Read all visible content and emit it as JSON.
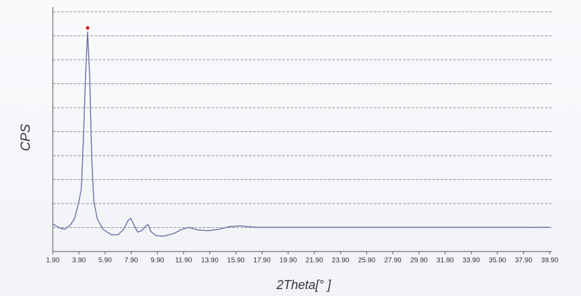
{
  "chart_data": {
    "type": "line",
    "xlabel": "2Theta[° ]",
    "ylabel": "CPS",
    "series": [
      {
        "color": "#6a6ea6",
        "x": [
          1.9,
          2.38,
          2.8,
          3.18,
          3.55,
          3.87,
          4.08,
          4.24,
          4.4,
          4.56,
          4.72,
          4.88,
          5.04,
          5.3,
          5.73,
          6.36,
          6.89,
          7.32,
          7.64,
          7.85,
          8.06,
          8.38,
          8.7,
          9.02,
          9.18,
          9.39,
          9.76,
          10.35,
          11.15,
          11.78,
          12.31,
          13.0,
          13.8,
          14.6,
          15.4,
          16.19,
          17.52,
          39.9
        ],
        "values": [
          1.16,
          0.99,
          0.93,
          1.07,
          1.36,
          2.03,
          2.61,
          4.7,
          7.3,
          9.16,
          7.3,
          3.83,
          2.09,
          1.36,
          0.93,
          0.7,
          0.7,
          0.93,
          1.28,
          1.39,
          1.16,
          0.81,
          0.87,
          1.07,
          1.13,
          0.84,
          0.67,
          0.64,
          0.75,
          0.93,
          1.01,
          0.9,
          0.87,
          0.93,
          1.04,
          1.07,
          1.01,
          1.01
        ]
      }
    ],
    "peak": {
      "x": 4.56,
      "value": 9.33,
      "color": "#e0101a"
    },
    "xlim": [
      1.9,
      39.9
    ],
    "ylim": [
      0,
      10
    ],
    "xticks": [
      {
        "value": 1.9,
        "label": "1.90"
      },
      {
        "value": 3.9,
        "label": "3.90"
      },
      {
        "value": 5.9,
        "label": "5.90"
      },
      {
        "value": 7.9,
        "label": "7.90"
      },
      {
        "value": 9.9,
        "label": "9.90"
      },
      {
        "value": 11.9,
        "label": "11.90"
      },
      {
        "value": 13.9,
        "label": "13.90"
      },
      {
        "value": 15.9,
        "label": "15.90"
      },
      {
        "value": 17.9,
        "label": "17.90"
      },
      {
        "value": 19.9,
        "label": "19.90"
      },
      {
        "value": 21.9,
        "label": "21.90"
      },
      {
        "value": 23.9,
        "label": "23.90"
      },
      {
        "value": 25.9,
        "label": "25.90"
      },
      {
        "value": 27.9,
        "label": "27.90"
      },
      {
        "value": 29.9,
        "label": "29.90"
      },
      {
        "value": 31.9,
        "label": "31.90"
      },
      {
        "value": 33.9,
        "label": "33.90"
      },
      {
        "value": 35.9,
        "label": "35.90"
      },
      {
        "value": 37.9,
        "label": "37.90"
      },
      {
        "value": 39.9,
        "label": "39.90"
      }
    ],
    "yticks": [
      1,
      2,
      3,
      4,
      5,
      6,
      7,
      8,
      9,
      10
    ],
    "grid": true
  }
}
